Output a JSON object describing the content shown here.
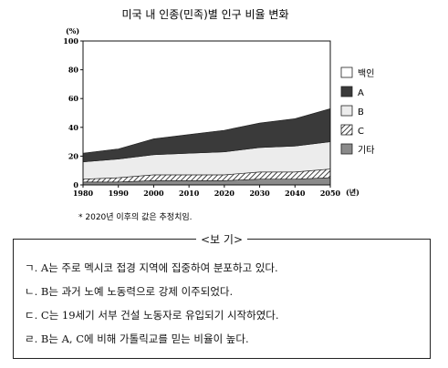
{
  "chart_data": {
    "type": "area",
    "title": "미국 내 인종(민족)별 인구 비율 변화",
    "ylabel": "(%)",
    "xlabel": "(년)",
    "ylim": [
      0,
      100
    ],
    "yticks": [
      "0",
      "20",
      "40",
      "60",
      "80",
      "100"
    ],
    "x": [
      1980,
      1990,
      2000,
      2010,
      2020,
      2030,
      2040,
      2050
    ],
    "xticks": [
      "1980",
      "1990",
      "2000",
      "2010",
      "2020",
      "2030",
      "2040",
      "2050"
    ],
    "stacking": "stacked",
    "series": [
      {
        "name": "기타",
        "pattern": "gray",
        "values": [
          2,
          2,
          3,
          3,
          3,
          4,
          4,
          5
        ]
      },
      {
        "name": "C",
        "pattern": "hatch",
        "values": [
          2,
          3,
          4,
          4,
          4,
          5,
          5,
          6
        ]
      },
      {
        "name": "B",
        "pattern": "light",
        "values": [
          12,
          13,
          14,
          15,
          16,
          17,
          18,
          19
        ]
      },
      {
        "name": "A",
        "pattern": "dark",
        "values": [
          6,
          7,
          11,
          13,
          15,
          17,
          19,
          23
        ]
      },
      {
        "name": "백인",
        "pattern": "white",
        "values": [
          78,
          75,
          68,
          65,
          62,
          57,
          54,
          47
        ]
      }
    ],
    "legend_order": [
      "백인",
      "A",
      "B",
      "C",
      "기타"
    ],
    "legend": "right",
    "note": "* 2020년 이후의 값은 추정치임."
  },
  "bogi": {
    "title": "<보 기>",
    "items": [
      "ㄱ. A는 주로 멕시코 접경 지역에 집중하여 분포하고 있다.",
      "ㄴ. B는 과거 노예 노동력으로 강제 이주되었다.",
      "ㄷ. C는 19세기 서부 건설 노동자로 유입되기 시작하였다.",
      "ㄹ. B는 A, C에 비해 가톨릭교를 믿는 비율이 높다."
    ]
  },
  "colors": {
    "dark": "#3a3a3a",
    "light": "#ececec",
    "gray": "#8a8a8a",
    "hatch": "#111111",
    "white": "#ffffff"
  }
}
